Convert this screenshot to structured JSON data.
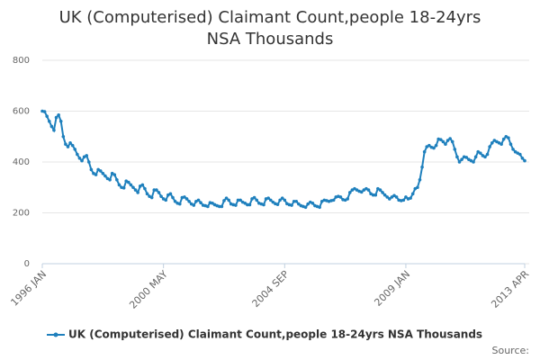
{
  "chart_data": {
    "type": "line",
    "title": "UK (Computerised) Claimant Count,people 18-24yrs NSA Thousands",
    "categories": [
      "1996 JAN",
      null,
      null,
      null,
      null,
      null,
      null,
      null,
      null,
      null,
      null,
      null,
      null,
      null,
      null,
      null,
      null,
      null,
      null,
      null,
      null,
      null,
      null,
      null,
      null,
      null,
      null,
      null,
      null,
      null,
      null,
      null,
      null,
      null,
      null,
      null,
      null,
      null,
      null,
      null,
      null,
      null,
      null,
      null,
      null,
      null,
      null,
      null,
      null,
      null,
      null,
      null,
      "2000 MAY",
      null,
      null,
      null,
      null,
      null,
      null,
      null,
      null,
      null,
      null,
      null,
      null,
      null,
      null,
      null,
      null,
      null,
      null,
      null,
      null,
      null,
      null,
      null,
      null,
      null,
      null,
      null,
      null,
      null,
      null,
      null,
      null,
      null,
      null,
      null,
      null,
      null,
      null,
      null,
      null,
      null,
      null,
      null,
      null,
      null,
      null,
      null,
      null,
      null,
      null,
      null,
      "2004 SEP",
      null,
      null,
      null,
      null,
      null,
      null,
      null,
      null,
      null,
      null,
      null,
      null,
      null,
      null,
      null,
      null,
      null,
      null,
      null,
      null,
      null,
      null,
      null,
      null,
      null,
      null,
      null,
      null,
      null,
      null,
      null,
      null,
      null,
      null,
      null,
      null,
      null,
      null,
      null,
      null,
      null,
      null,
      null,
      null,
      null,
      null,
      null,
      null,
      null,
      null,
      null,
      "2009 JAN",
      null,
      null,
      null,
      null,
      null,
      null,
      null,
      null,
      null,
      null,
      null,
      null,
      null,
      null,
      null,
      null,
      null,
      null,
      null,
      null,
      null,
      null,
      null,
      null,
      null,
      null,
      null,
      null,
      null,
      null,
      null,
      null,
      null,
      null,
      null,
      null,
      null,
      null,
      null,
      null,
      null,
      null,
      null,
      null,
      null,
      null,
      null,
      null,
      null,
      null,
      "2013 APR"
    ],
    "series": [
      {
        "name": "UK (Computerised) Claimant Count,people 18-24yrs NSA Thousands",
        "color": "#1f80bd",
        "values": [
          600,
          598,
          580,
          560,
          540,
          525,
          575,
          585,
          560,
          500,
          470,
          460,
          475,
          465,
          450,
          430,
          415,
          405,
          420,
          425,
          400,
          370,
          355,
          350,
          370,
          365,
          355,
          345,
          335,
          330,
          355,
          350,
          330,
          310,
          300,
          298,
          325,
          320,
          310,
          300,
          290,
          280,
          305,
          310,
          295,
          275,
          265,
          260,
          290,
          290,
          280,
          265,
          255,
          250,
          270,
          275,
          260,
          245,
          238,
          235,
          260,
          262,
          255,
          245,
          235,
          230,
          245,
          250,
          240,
          230,
          228,
          225,
          240,
          238,
          232,
          228,
          225,
          225,
          248,
          258,
          250,
          235,
          232,
          230,
          250,
          250,
          242,
          238,
          232,
          232,
          255,
          260,
          250,
          238,
          235,
          232,
          255,
          258,
          250,
          242,
          236,
          233,
          250,
          258,
          250,
          236,
          232,
          230,
          245,
          245,
          235,
          228,
          225,
          222,
          235,
          242,
          238,
          228,
          225,
          222,
          245,
          250,
          248,
          245,
          248,
          250,
          262,
          265,
          262,
          252,
          250,
          255,
          280,
          290,
          295,
          290,
          285,
          282,
          290,
          295,
          290,
          275,
          270,
          270,
          295,
          290,
          280,
          270,
          262,
          255,
          262,
          268,
          262,
          250,
          248,
          250,
          262,
          255,
          258,
          275,
          295,
          300,
          330,
          380,
          440,
          460,
          465,
          458,
          455,
          465,
          490,
          488,
          480,
          470,
          485,
          492,
          480,
          450,
          420,
          400,
          410,
          420,
          418,
          410,
          405,
          400,
          420,
          440,
          435,
          425,
          420,
          430,
          460,
          475,
          485,
          480,
          475,
          470,
          490,
          500,
          495,
          470,
          450,
          440,
          435,
          430,
          415,
          405
        ]
      }
    ],
    "ylim": [
      0,
      800
    ],
    "yticks": [
      0,
      200,
      400,
      600,
      800
    ],
    "grid": true,
    "source": "Source:"
  }
}
